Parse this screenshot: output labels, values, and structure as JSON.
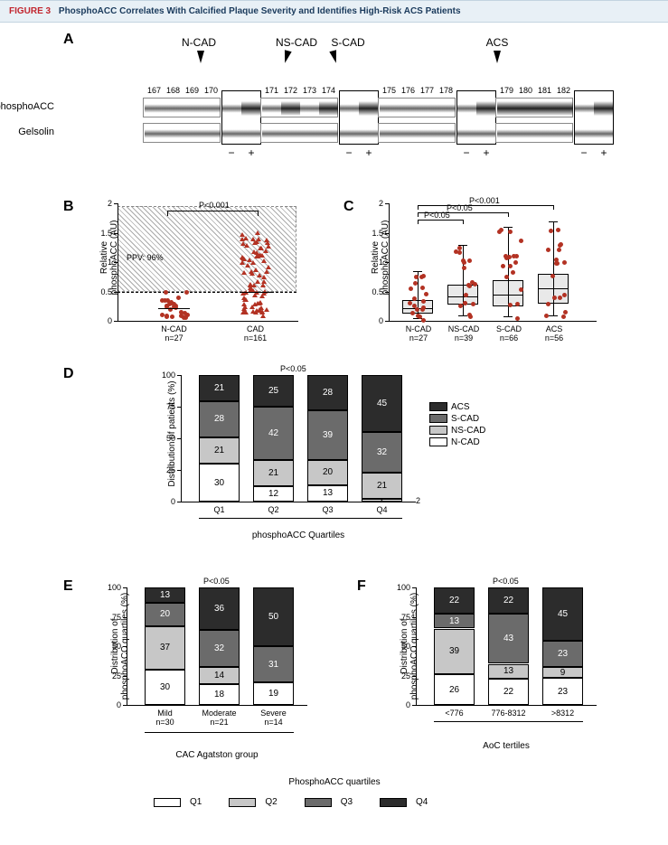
{
  "header": {
    "num": "FIGURE 3",
    "title": "PhosphoACC Correlates With Calcified Plaque Severity and Identifies High-Risk ACS Patients"
  },
  "colors": {
    "acs": "#2c2c2c",
    "scad": "#6b6b6b",
    "nscad": "#c7c7c7",
    "ncad": "#ffffff",
    "q1": "#ffffff",
    "q2": "#c7c7c7",
    "q3": "#6b6b6b",
    "q4": "#2c2c2c",
    "dot": "#b33223",
    "tri": "#b33223"
  },
  "A": {
    "groups": [
      "N-CAD",
      "NS-CAD",
      "S-CAD",
      "ACS"
    ],
    "lanes": [
      "167",
      "168",
      "169",
      "170",
      "171",
      "172",
      "173",
      "174",
      "175",
      "176",
      "177",
      "178",
      "179",
      "180",
      "181",
      "182"
    ],
    "rows": [
      "phosphoACC",
      "Gelsolin"
    ]
  },
  "B": {
    "ylabel": "Relative\nphosphoACC (AU)",
    "ylim": [
      0,
      2.0
    ],
    "yticks": [
      0,
      0.5,
      1.0,
      1.5,
      2.0
    ],
    "groups": [
      {
        "label": "N-CAD",
        "n": "n=27"
      },
      {
        "label": "CAD",
        "n": "n=161"
      }
    ],
    "p": "P<0.001",
    "ppv": "PPV: 96%"
  },
  "C": {
    "ylabel": "Relative\nphosphoACC (AU)",
    "ylim": [
      0,
      2.0
    ],
    "yticks": [
      0,
      0.5,
      1.0,
      1.5,
      2.0
    ],
    "groups": [
      {
        "label": "N-CAD",
        "n": "n=27"
      },
      {
        "label": "NS-CAD",
        "n": "n=39"
      },
      {
        "label": "S-CAD",
        "n": "n=66"
      },
      {
        "label": "ACS",
        "n": "n=56"
      }
    ],
    "p": [
      "P<0.05",
      "P<0.05",
      "P<0.001"
    ],
    "boxes": [
      {
        "q1": 0.12,
        "med": 0.22,
        "q3": 0.35,
        "lo": 0.05,
        "hi": 0.85
      },
      {
        "q1": 0.28,
        "med": 0.42,
        "q3": 0.62,
        "lo": 0.1,
        "hi": 1.3
      },
      {
        "q1": 0.25,
        "med": 0.45,
        "q3": 0.7,
        "lo": 0.08,
        "hi": 1.6
      },
      {
        "q1": 0.3,
        "med": 0.55,
        "q3": 0.8,
        "lo": 0.1,
        "hi": 1.7
      }
    ]
  },
  "D": {
    "ylabel": "Distribution of patients (%)",
    "ylim": [
      0,
      100
    ],
    "yticks": [
      0,
      25,
      50,
      75,
      100
    ],
    "p": "P<0.05",
    "xtitle": "phosphoACC Quartiles",
    "cats": [
      "Q1",
      "Q2",
      "Q3",
      "Q4"
    ],
    "legend": [
      "ACS",
      "S-CAD",
      "NS-CAD",
      "N-CAD"
    ],
    "stacks": [
      {
        "N-CAD": 30,
        "NS-CAD": 21,
        "S-CAD": 28,
        "ACS": 21
      },
      {
        "N-CAD": 12,
        "NS-CAD": 21,
        "S-CAD": 42,
        "ACS": 25
      },
      {
        "N-CAD": 13,
        "NS-CAD": 20,
        "S-CAD": 39,
        "ACS": 28
      },
      {
        "N-CAD": 2,
        "NS-CAD": 21,
        "S-CAD": 32,
        "ACS": 45
      }
    ]
  },
  "E": {
    "ylabel": "Distribution of\nphosphoACC quartiles (%)",
    "ylim": [
      0,
      100
    ],
    "yticks": [
      0,
      25,
      50,
      75,
      100
    ],
    "p": "P<0.05",
    "xtitle": "CAC Agatston group",
    "cats": [
      {
        "label": "Mild",
        "n": "n=30"
      },
      {
        "label": "Moderate",
        "n": "n=21"
      },
      {
        "label": "Severe",
        "n": "n=14"
      }
    ],
    "stacks": [
      {
        "Q1": 30,
        "Q2": 37,
        "Q3": 20,
        "Q4": 13
      },
      {
        "Q1": 18,
        "Q2": 14,
        "Q3": 32,
        "Q4": 36
      },
      {
        "Q1": 19,
        "Q2": 0,
        "Q3": 31,
        "Q4": 50
      }
    ]
  },
  "F": {
    "ylabel": "Distribution of\nphosphoACC quartiles (%)",
    "ylim": [
      0,
      100
    ],
    "yticks": [
      0,
      25,
      50,
      75,
      100
    ],
    "p": "P<0.05",
    "xtitle": "AoC tertiles",
    "cats": [
      "<776",
      "776-8312",
      ">8312"
    ],
    "stacks": [
      {
        "Q1": 26,
        "Q2": 39,
        "Q3": 13,
        "Q4": 22
      },
      {
        "Q1": 22,
        "Q2": 13,
        "Q3": 43,
        "Q4": 22
      },
      {
        "Q1": 23,
        "Q2": 9,
        "Q3": 23,
        "Q4": 45
      }
    ]
  },
  "bottomLegend": {
    "title": "PhosphoACC quartiles",
    "items": [
      "Q1",
      "Q2",
      "Q3",
      "Q4"
    ]
  }
}
